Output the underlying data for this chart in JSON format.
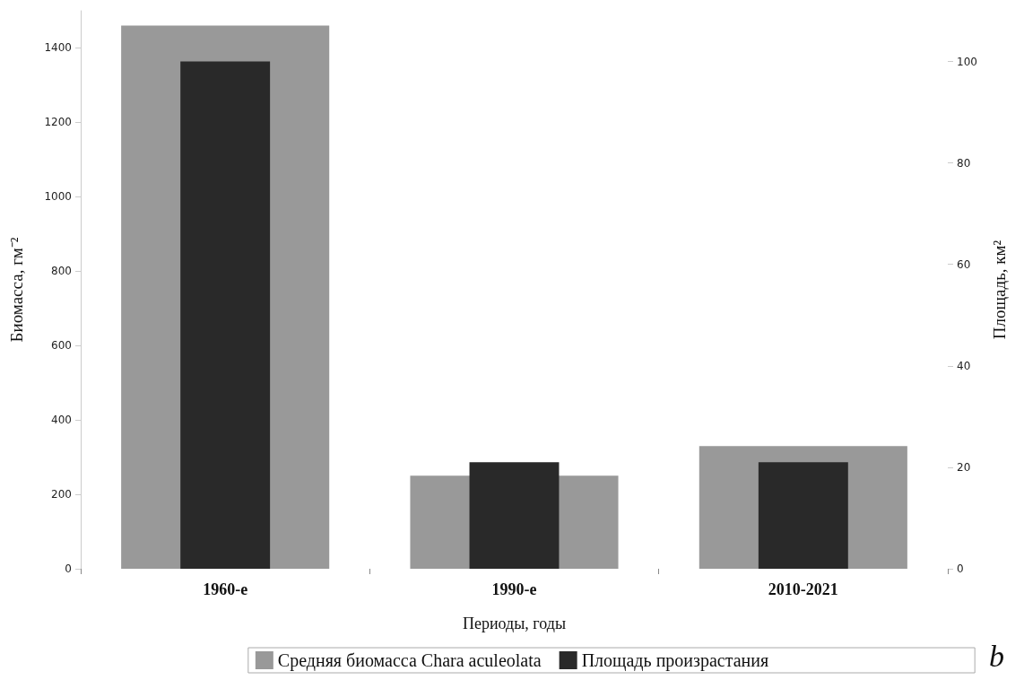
{
  "chart_data": {
    "type": "bar",
    "categories": [
      "1960-е",
      "1990-е",
      "2010-2021"
    ],
    "xlabel": "Периоды, годы",
    "ylabel": "Биомасса, гм⁻²",
    "y2label": "Площадь, км²",
    "series": [
      {
        "name": "Средняя биомасса Chara aculeolata",
        "color": "#999999",
        "values": [
          1460,
          250,
          330
        ]
      },
      {
        "name": "Площадь произрастания",
        "color": "#292929",
        "values": [
          100,
          21,
          21
        ],
        "axis": "y2"
      }
    ],
    "ylim": [
      0,
      1500
    ],
    "yticks": [
      0,
      200,
      400,
      600,
      800,
      1000,
      1200,
      1400
    ],
    "y2lim": [
      0,
      110
    ],
    "y2ticks": [
      0,
      20,
      40,
      60,
      80,
      100
    ],
    "grid": false,
    "legend": "bottom",
    "annotations": [
      "b"
    ]
  }
}
